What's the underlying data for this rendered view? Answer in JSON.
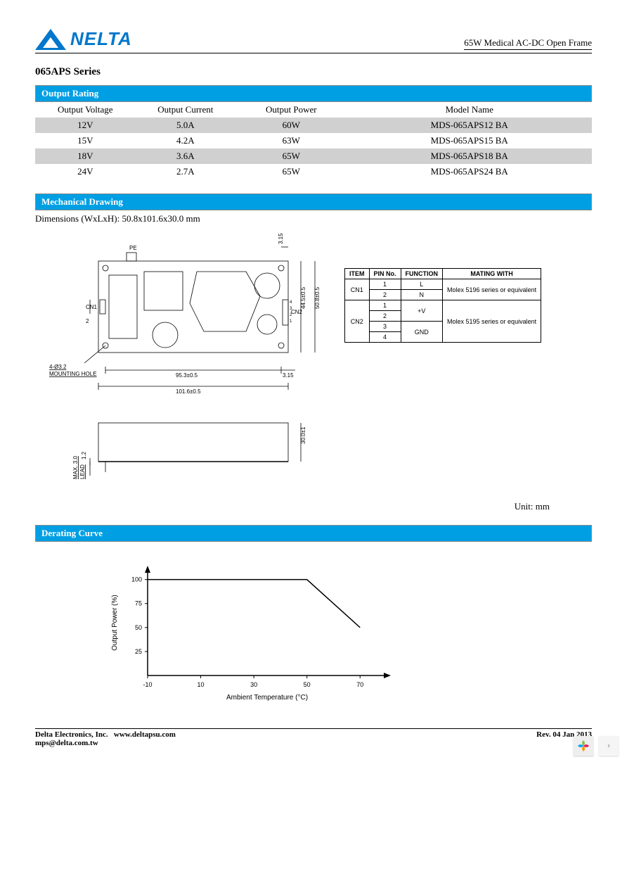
{
  "header": {
    "logo_text": "NELTA",
    "doc_title": "65W Medical AC-DC Open Frame"
  },
  "series_title": "065APS Series",
  "sections": {
    "output_rating": "Output Rating",
    "mechanical_drawing": "Mechanical Drawing",
    "derating_curve": "Derating Curve"
  },
  "output_rating_table": {
    "columns": [
      "Output Voltage",
      "Output Current",
      "Output Power",
      "Model Name"
    ],
    "col_widths": [
      "18%",
      "18%",
      "20%",
      "44%"
    ],
    "rows": [
      [
        "12V",
        "5.0A",
        "60W",
        "MDS-065APS12 BA"
      ],
      [
        "15V",
        "4.2A",
        "63W",
        "MDS-065APS15 BA"
      ],
      [
        "18V",
        "3.6A",
        "65W",
        "MDS-065APS18 BA"
      ],
      [
        "24V",
        "2.7A",
        "65W",
        "MDS-065APS24 BA"
      ]
    ],
    "shaded_rows": [
      0,
      2
    ]
  },
  "mechanical": {
    "dimensions_text": "Dimensions (WxLxH): 50.8x101.6x30.0 mm",
    "unit_label": "Unit: mm",
    "top_view": {
      "pe_label": "PE",
      "dim_top_right": "3.15",
      "dim_right_inner": "44.5±0.5",
      "dim_right_outer": "50.8±0.5",
      "dim_left": "2",
      "mounting_hole": "4-Ø3.2\nMOUNTING HOLE",
      "dim_bottom_inner": "95.3±0.5",
      "dim_bottom_right": "3.15",
      "dim_bottom_outer": "101.6±0.5",
      "cn1_label": "CN1",
      "cn2_label": "CN2",
      "cn2_pins": [
        "4",
        "3",
        "2",
        "1"
      ]
    },
    "side_view": {
      "dim_height": "30.0±1",
      "dim_board": "1.2",
      "dim_lead": "MAX. 3.0\nLEAD"
    },
    "pin_table": {
      "headers": [
        "ITEM",
        "PIN No.",
        "FUNCTION",
        "MATING WITH"
      ],
      "rows": [
        {
          "item": "CN1",
          "pin": "1",
          "func": "L",
          "mating": "Molex 5196 series or equivalent",
          "rowspan_item": 2,
          "rowspan_mating": 2
        },
        {
          "item": "",
          "pin": "2",
          "func": "N",
          "mating": ""
        },
        {
          "item": "CN2",
          "pin": "1",
          "func": "+V",
          "mating": "Molex 5195 series or equivalent",
          "rowspan_item": 4,
          "rowspan_func": 2,
          "rowspan_mating": 4
        },
        {
          "item": "",
          "pin": "2",
          "func": "",
          "mating": ""
        },
        {
          "item": "",
          "pin": "3",
          "func": "GND",
          "mating": "",
          "rowspan_func": 2
        },
        {
          "item": "",
          "pin": "4",
          "func": "",
          "mating": ""
        }
      ]
    }
  },
  "derating_chart": {
    "type": "line",
    "xlabel": "Ambient Temperature (°C)",
    "ylabel": "Output Power (%)",
    "xlim": [
      -10,
      80
    ],
    "ylim": [
      0,
      110
    ],
    "xticks": [
      -10,
      10,
      30,
      50,
      70
    ],
    "yticks": [
      25,
      50,
      75,
      100
    ],
    "line_points": [
      [
        -10,
        100
      ],
      [
        50,
        100
      ],
      [
        70,
        50
      ]
    ],
    "line_color": "#000000",
    "line_width": 1.5,
    "axis_color": "#000000",
    "background": "#ffffff",
    "label_fontsize": 10,
    "tick_fontsize": 9
  },
  "footer": {
    "company": "Delta Electronics, Inc.",
    "website": "www.deltapsu.com",
    "email": "mps@delta.com.tw",
    "revision": "Rev. 04  Jan 2013"
  },
  "colors": {
    "brand_blue": "#0077cc",
    "section_blue": "#009fe3",
    "row_shade": "#d0d0d0"
  }
}
